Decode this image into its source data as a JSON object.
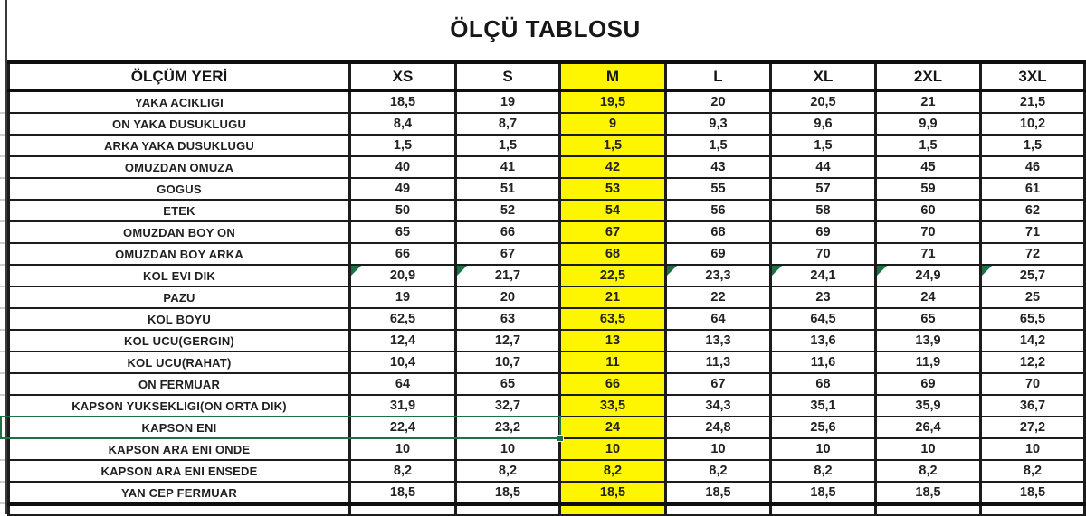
{
  "title": "ÖLÇÜ TABLOSU",
  "table": {
    "header": {
      "label": "ÖLÇÜM YERİ",
      "sizes": [
        "XS",
        "S",
        "M",
        "L",
        "XL",
        "2XL",
        "3XL"
      ]
    },
    "highlighted_column": "M",
    "rows": [
      {
        "label": "YAKA ACIKLIGI",
        "values": [
          "18,5",
          "19",
          "19,5",
          "20",
          "20,5",
          "21",
          "21,5"
        ]
      },
      {
        "label": "ON YAKA DUSUKLUGU",
        "values": [
          "8,4",
          "8,7",
          "9",
          "9,3",
          "9,6",
          "9,9",
          "10,2"
        ]
      },
      {
        "label": "ARKA YAKA DUSUKLUGU",
        "values": [
          "1,5",
          "1,5",
          "1,5",
          "1,5",
          "1,5",
          "1,5",
          "1,5"
        ]
      },
      {
        "label": "OMUZDAN OMUZA",
        "values": [
          "40",
          "41",
          "42",
          "43",
          "44",
          "45",
          "46"
        ]
      },
      {
        "label": "GOGUS",
        "values": [
          "49",
          "51",
          "53",
          "55",
          "57",
          "59",
          "61"
        ]
      },
      {
        "label": "ETEK",
        "values": [
          "50",
          "52",
          "54",
          "56",
          "58",
          "60",
          "62"
        ]
      },
      {
        "label": "OMUZDAN BOY ON",
        "values": [
          "65",
          "66",
          "67",
          "68",
          "69",
          "70",
          "71"
        ]
      },
      {
        "label": "OMUZDAN BOY ARKA",
        "values": [
          "66",
          "67",
          "68",
          "69",
          "70",
          "71",
          "72"
        ]
      },
      {
        "label": "KOL EVI DIK",
        "values": [
          "20,9",
          "21,7",
          "22,5",
          "23,3",
          "24,1",
          "24,9",
          "25,7"
        ],
        "flags": [
          true,
          true,
          false,
          true,
          true,
          true,
          true
        ]
      },
      {
        "label": "PAZU",
        "values": [
          "19",
          "20",
          "21",
          "22",
          "23",
          "24",
          "25"
        ]
      },
      {
        "label": "KOL BOYU",
        "values": [
          "62,5",
          "63",
          "63,5",
          "64",
          "64,5",
          "65",
          "65,5"
        ]
      },
      {
        "label": "KOL UCU(GERGIN)",
        "values": [
          "12,4",
          "12,7",
          "13",
          "13,3",
          "13,6",
          "13,9",
          "14,2"
        ]
      },
      {
        "label": "KOL UCU(RAHAT)",
        "values": [
          "10,4",
          "10,7",
          "11",
          "11,3",
          "11,6",
          "11,9",
          "12,2"
        ]
      },
      {
        "label": "ON FERMUAR",
        "values": [
          "64",
          "65",
          "66",
          "67",
          "68",
          "69",
          "70"
        ]
      },
      {
        "label": "KAPSON YUKSEKLIGI(ON ORTA DIK)",
        "values": [
          "31,9",
          "32,7",
          "33,5",
          "34,3",
          "35,1",
          "35,9",
          "36,7"
        ]
      },
      {
        "label": "KAPSON ENI",
        "values": [
          "22,4",
          "23,2",
          "24",
          "24,8",
          "25,6",
          "26,4",
          "27,2"
        ],
        "selected": true
      },
      {
        "label": "KAPSON ARA ENI ONDE",
        "values": [
          "10",
          "10",
          "10",
          "10",
          "10",
          "10",
          "10"
        ]
      },
      {
        "label": "KAPSON ARA ENI ENSEDE",
        "values": [
          "8,2",
          "8,2",
          "8,2",
          "8,2",
          "8,2",
          "8,2",
          "8,2"
        ]
      },
      {
        "label": "YAN CEP FERMUAR",
        "values": [
          "18,5",
          "18,5",
          "18,5",
          "18,5",
          "18,5",
          "18,5",
          "18,5"
        ]
      }
    ],
    "selection": {
      "row_label": "KAPSON ENI",
      "active_column": "S",
      "active_value": "23,2"
    }
  },
  "colors": {
    "highlight_yellow": "#fef500",
    "flag_green": "#1e7145",
    "selection_green": "#1e7145",
    "grid_black": "#1c1c1c"
  }
}
